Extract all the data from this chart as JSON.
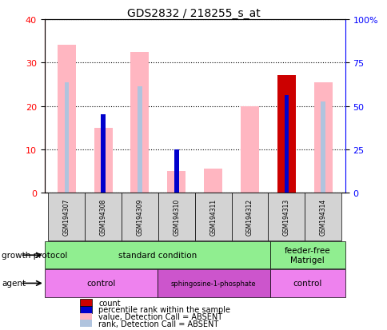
{
  "title": "GDS2832 / 218255_s_at",
  "samples": [
    "GSM194307",
    "GSM194308",
    "GSM194309",
    "GSM194310",
    "GSM194311",
    "GSM194312",
    "GSM194313",
    "GSM194314"
  ],
  "value_absent": [
    34.0,
    15.0,
    32.5,
    5.0,
    5.5,
    20.0,
    null,
    25.5
  ],
  "rank_absent": [
    25.5,
    null,
    24.5,
    null,
    null,
    null,
    null,
    21.0
  ],
  "count": [
    null,
    null,
    null,
    null,
    null,
    null,
    27.0,
    null
  ],
  "percentile_rank": [
    null,
    18.0,
    null,
    10.0,
    null,
    null,
    22.5,
    null
  ],
  "ylim_left": [
    0,
    40
  ],
  "ylim_right": [
    0,
    100
  ],
  "yticks_left": [
    0,
    10,
    20,
    30,
    40
  ],
  "yticks_right": [
    0,
    25,
    50,
    75,
    100
  ],
  "yticklabels_right": [
    "0",
    "25",
    "50",
    "75",
    "100%"
  ],
  "growth_protocol_groups": [
    {
      "label": "standard condition",
      "start": 0,
      "end": 6,
      "color": "#90EE90"
    },
    {
      "label": "feeder-free\nMatrigel",
      "start": 6,
      "end": 8,
      "color": "#90EE90"
    }
  ],
  "agent_groups": [
    {
      "label": "control",
      "start": 0,
      "end": 3,
      "color": "#EE82EE"
    },
    {
      "label": "sphingosine-1-phosphate",
      "start": 3,
      "end": 6,
      "color": "#CC55CC"
    },
    {
      "label": "control",
      "start": 6,
      "end": 8,
      "color": "#EE82EE"
    }
  ],
  "color_count": "#CC0000",
  "color_percentile": "#0000CC",
  "color_value_absent": "#FFB6C1",
  "color_rank_absent": "#B0C4DE",
  "legend_items": [
    {
      "label": "count",
      "color": "#CC0000"
    },
    {
      "label": "percentile rank within the sample",
      "color": "#0000CC"
    },
    {
      "label": "value, Detection Call = ABSENT",
      "color": "#FFB6C1"
    },
    {
      "label": "rank, Detection Call = ABSENT",
      "color": "#B0C4DE"
    }
  ],
  "left_label_growth": "growth protocol",
  "left_label_agent": "agent",
  "bar_width": 0.5,
  "narrow_bar_width": 0.12
}
